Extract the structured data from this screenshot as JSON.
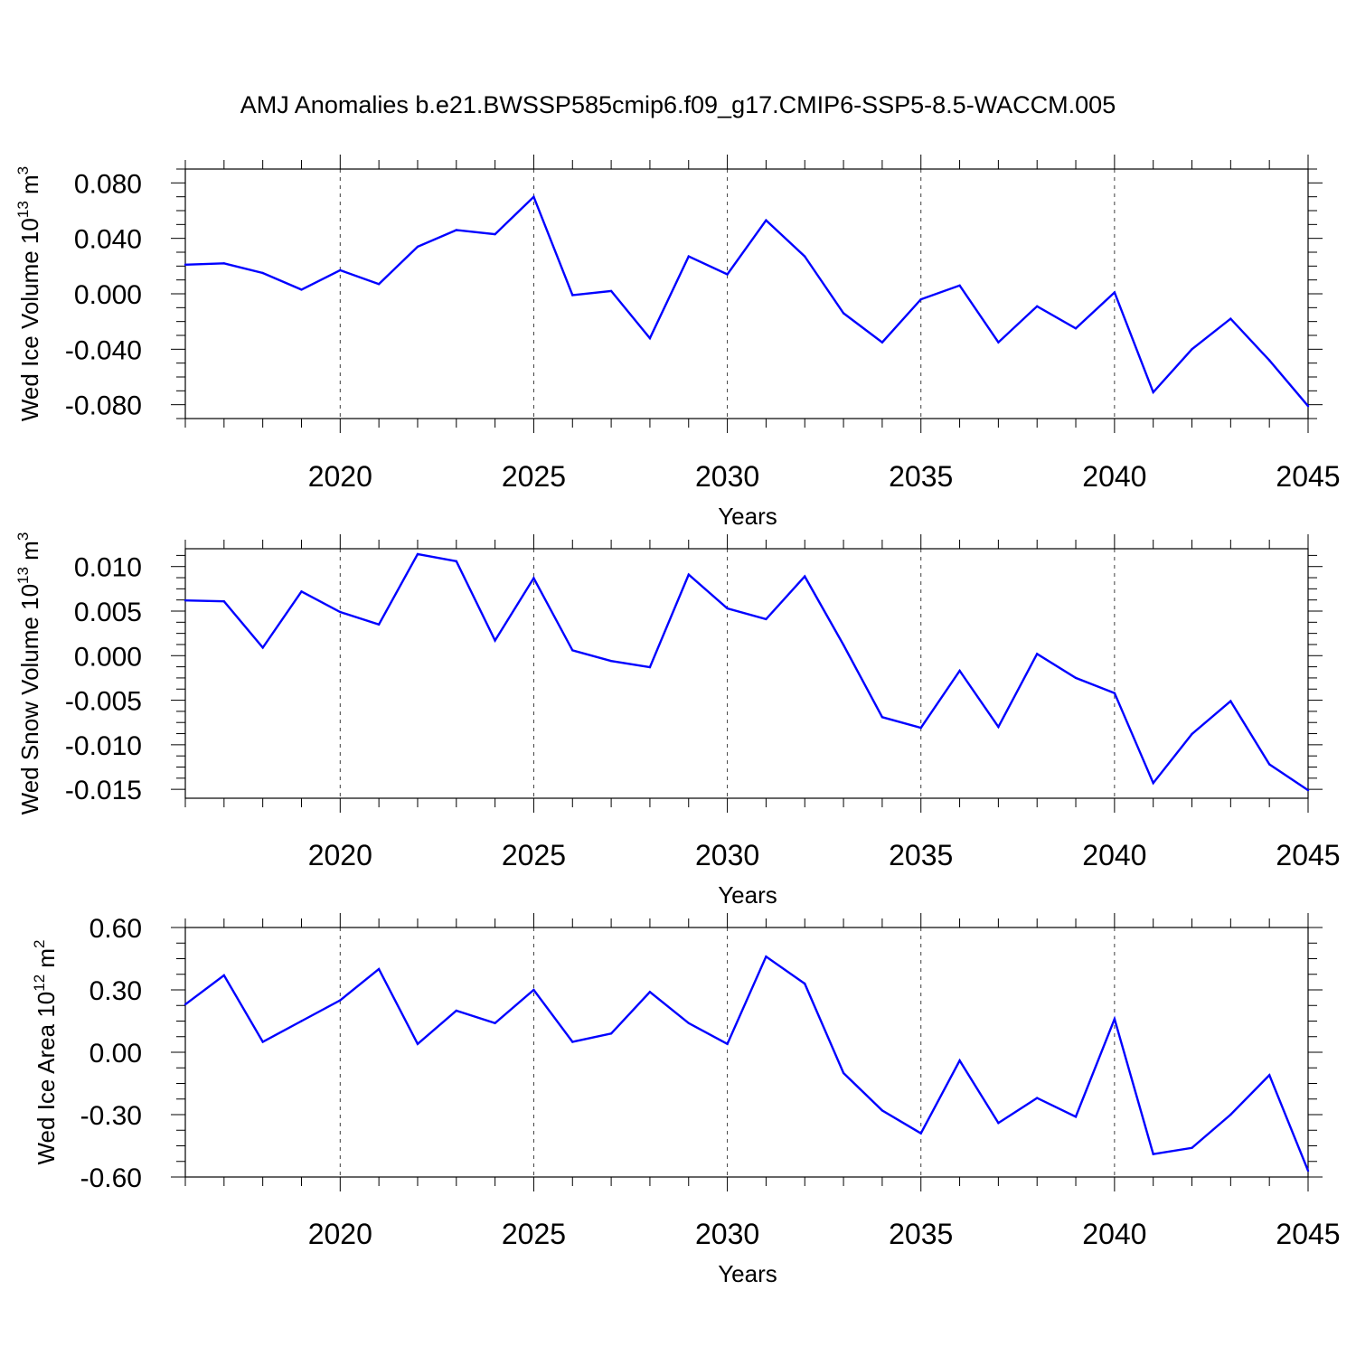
{
  "title": "AMJ Anomalies b.e21.BWSSP585cmip6.f09_g17.CMIP6-SSP5-8.5-WACCM.005",
  "line_color": "#0000ff",
  "chart_data": [
    {
      "type": "line",
      "ylabel_main": "Wed Ice Volume 10",
      "ylabel_exp": "13",
      "ylabel_unit": " m",
      "ylabel_unit_exp": "3",
      "xlabel": "Years",
      "xlim": [
        2016,
        2045
      ],
      "ylim": [
        -0.09,
        0.09
      ],
      "xticks": [
        "2020",
        "2025",
        "2030",
        "2035",
        "2040",
        "2045"
      ],
      "yticks": [
        "0.080",
        "0.040",
        "0.000",
        "-0.040",
        "-0.080"
      ],
      "x": [
        2016,
        2017,
        2018,
        2019,
        2020,
        2021,
        2022,
        2023,
        2024,
        2025,
        2026,
        2027,
        2028,
        2029,
        2030,
        2031,
        2032,
        2033,
        2034,
        2035,
        2036,
        2037,
        2038,
        2039,
        2040,
        2041,
        2042,
        2043,
        2044,
        2045
      ],
      "values": [
        0.021,
        0.022,
        0.015,
        0.003,
        0.017,
        0.007,
        0.034,
        0.046,
        0.043,
        0.07,
        -0.001,
        0.002,
        -0.032,
        0.027,
        0.014,
        0.053,
        0.027,
        -0.014,
        -0.035,
        -0.004,
        0.006,
        -0.035,
        -0.009,
        -0.025,
        0.001,
        -0.071,
        -0.04,
        -0.018,
        -0.048,
        -0.081
      ]
    },
    {
      "type": "line",
      "ylabel_main": "Wed Snow Volume 10",
      "ylabel_exp": "13",
      "ylabel_unit": " m",
      "ylabel_unit_exp": "3",
      "xlabel": "Years",
      "xlim": [
        2016,
        2045
      ],
      "ylim": [
        -0.016,
        0.012
      ],
      "xticks": [
        "2020",
        "2025",
        "2030",
        "2035",
        "2040",
        "2045"
      ],
      "yticks": [
        "0.010",
        "0.005",
        "0.000",
        "-0.005",
        "-0.010",
        "-0.015"
      ],
      "x": [
        2016,
        2017,
        2018,
        2019,
        2020,
        2021,
        2022,
        2023,
        2024,
        2025,
        2026,
        2027,
        2028,
        2029,
        2030,
        2031,
        2032,
        2033,
        2034,
        2035,
        2036,
        2037,
        2038,
        2039,
        2040,
        2041,
        2042,
        2043,
        2044,
        2045
      ],
      "values": [
        0.0062,
        0.0061,
        0.0009,
        0.0072,
        0.0049,
        0.0035,
        0.0114,
        0.0106,
        0.0017,
        0.0087,
        0.0006,
        -0.0006,
        -0.0013,
        0.0091,
        0.0053,
        0.0041,
        0.0089,
        0.0012,
        -0.0069,
        -0.0081,
        -0.0017,
        -0.008,
        0.0002,
        -0.0025,
        -0.0042,
        -0.0143,
        -0.0088,
        -0.0051,
        -0.0122,
        -0.0151
      ]
    },
    {
      "type": "line",
      "ylabel_main": "Wed Ice Area 10",
      "ylabel_exp": "12",
      "ylabel_unit": " m",
      "ylabel_unit_exp": "2",
      "xlabel": "Years",
      "xlim": [
        2016,
        2045
      ],
      "ylim": [
        -0.6,
        0.6
      ],
      "xticks": [
        "2020",
        "2025",
        "2030",
        "2035",
        "2040",
        "2045"
      ],
      "yticks": [
        "0.60",
        "0.30",
        "0.00",
        "-0.30",
        "-0.60"
      ],
      "x": [
        2016,
        2017,
        2018,
        2019,
        2020,
        2021,
        2022,
        2023,
        2024,
        2025,
        2026,
        2027,
        2028,
        2029,
        2030,
        2031,
        2032,
        2033,
        2034,
        2035,
        2036,
        2037,
        2038,
        2039,
        2040,
        2041,
        2042,
        2043,
        2044,
        2045
      ],
      "values": [
        0.23,
        0.37,
        0.05,
        0.15,
        0.25,
        0.4,
        0.04,
        0.2,
        0.14,
        0.3,
        0.05,
        0.09,
        0.29,
        0.14,
        0.04,
        0.46,
        0.33,
        -0.1,
        -0.28,
        -0.39,
        -0.04,
        -0.34,
        -0.22,
        -0.31,
        0.16,
        -0.49,
        -0.46,
        -0.3,
        -0.11,
        -0.57
      ]
    }
  ]
}
